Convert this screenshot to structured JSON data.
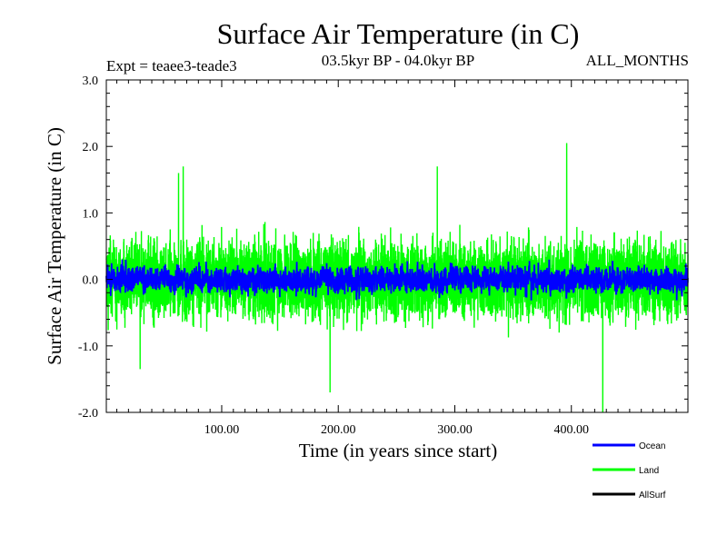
{
  "chart_data": {
    "type": "line",
    "title": "Surface Air Temperature (in C)",
    "subtitle_left": "Expt = teaee3-teade3",
    "subtitle_center": "03.5kyr BP - 04.0kyr BP",
    "subtitle_right": "ALL_MONTHS",
    "xlabel": "Time (in years since start)",
    "ylabel": "Surface Air Temperature (in C)",
    "xlim": [
      1,
      500
    ],
    "ylim": [
      -2.0,
      3.0
    ],
    "x_ticks": [
      {
        "value": 100,
        "label": "100.00"
      },
      {
        "value": 200,
        "label": "200.00"
      },
      {
        "value": 300,
        "label": "300.00"
      },
      {
        "value": 400,
        "label": "400.00"
      }
    ],
    "y_ticks": [
      {
        "value": -2.0,
        "label": "-2.0"
      },
      {
        "value": -1.0,
        "label": "-1.0"
      },
      {
        "value": 0.0,
        "label": "0.0"
      },
      {
        "value": 1.0,
        "label": "1.0"
      },
      {
        "value": 2.0,
        "label": "2.0"
      },
      {
        "value": 3.0,
        "label": "3.0"
      }
    ],
    "series": [
      {
        "name": "Land",
        "color": "#00ff00",
        "mean": 0.0,
        "amplitude": 0.5,
        "min": -2.0,
        "max": 2.0,
        "highlights": [
          {
            "x": 63,
            "y": 1.6
          },
          {
            "x": 67,
            "y": 1.7
          },
          {
            "x": 193,
            "y": -1.7
          },
          {
            "x": 285,
            "y": 1.7
          },
          {
            "x": 396,
            "y": 2.05
          },
          {
            "x": 427,
            "y": -2.0
          },
          {
            "x": 30,
            "y": -1.35
          }
        ]
      },
      {
        "name": "Ocean",
        "color": "#0000ff",
        "mean": 0.0,
        "amplitude": 0.15,
        "min": -0.5,
        "max": 0.5
      },
      {
        "name": "AllSurf",
        "color": "#000000",
        "mean": 0.0,
        "amplitude": 0.0
      }
    ],
    "legend": [
      {
        "name": "Ocean",
        "color": "#0000ff"
      },
      {
        "name": "Land",
        "color": "#00ff00"
      },
      {
        "name": "AllSurf",
        "color": "#000000"
      }
    ],
    "legend_position": "bottom-right"
  }
}
